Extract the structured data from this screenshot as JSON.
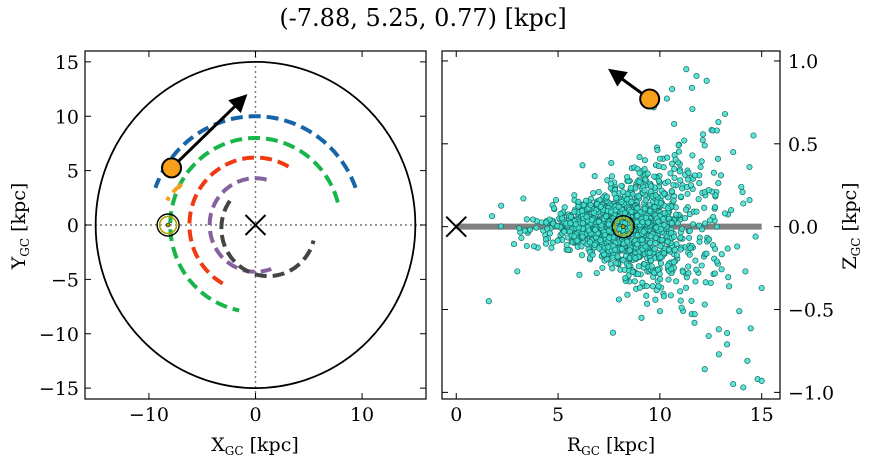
{
  "title": "(-7.88, 5.25, 0.77) [kpc]",
  "colors": {
    "arm_blue": "#1565a8",
    "arm_green": "#17b54a",
    "arm_red": "#f03a12",
    "arm_purple": "#86609f",
    "arm_dark": "#444444",
    "arm_orange": "#f7a01a",
    "sun_ring": "#b3a200",
    "star_marker": "#f7a01a",
    "scatter_fill": "#40e0d0",
    "scatter_edge": "#176b63",
    "disk_plane": "#808080"
  },
  "chart_data": [
    {
      "type": "line",
      "panel": "left",
      "xlabel_base": "X",
      "xlabel_sub": "GC",
      "xlabel_unit": " [kpc]",
      "ylabel_base": "Y",
      "ylabel_sub": "GC",
      "ylabel_unit": " [kpc]",
      "xlim": [
        -16,
        16
      ],
      "ylim": [
        -16,
        16
      ],
      "xticks": [
        -10,
        0,
        10
      ],
      "xtick_labels": [
        "−10",
        "0",
        "10"
      ],
      "yticks": [
        -15,
        -10,
        -5,
        0,
        5,
        10,
        15
      ],
      "ytick_labels": [
        "−15",
        "−10",
        "−5",
        "0",
        "5",
        "10",
        "15"
      ],
      "boundary_radius": 15,
      "galactic_center": [
        0,
        0
      ],
      "sun": [
        -8.2,
        0
      ],
      "object": [
        -7.88,
        5.25
      ],
      "velocity_arrow_tip": [
        -1.0,
        11.8
      ],
      "series": [
        {
          "color": "arm_blue",
          "radius": 10,
          "from_deg": 20,
          "to_deg": 160
        },
        {
          "color": "arm_green",
          "radius": 8,
          "from_deg": 15,
          "to_deg": 260
        },
        {
          "color": "arm_red",
          "radius": 6.2,
          "from_deg": 60,
          "to_deg": 243
        },
        {
          "color": "arm_purple",
          "radius": 4.3,
          "from_deg": 76,
          "to_deg": 290
        },
        {
          "color": "arm_dark",
          "radius": 4.4,
          "from_deg": 145,
          "to_deg": 345,
          "center": [
            1.2,
            -0.3
          ]
        },
        {
          "color": "arm_orange",
          "radius": 4.5,
          "from_deg": 124,
          "to_deg": 150,
          "center": [
            -4.4,
            0
          ]
        }
      ]
    },
    {
      "type": "scatter",
      "panel": "right",
      "xlabel_base": "R",
      "xlabel_sub": "GC",
      "xlabel_unit": " [kpc]",
      "ylabel_base": "Z",
      "ylabel_sub": "GC",
      "ylabel_unit": " [kpc]",
      "xlim": [
        -0.7,
        15.9
      ],
      "ylim": [
        -1.04,
        1.06
      ],
      "xticks": [
        0,
        5,
        10,
        15
      ],
      "xtick_labels": [
        "0",
        "5",
        "10",
        "15"
      ],
      "yticks": [
        -1.0,
        -0.5,
        0.0,
        0.5,
        1.0
      ],
      "ytick_labels": [
        "−1.0",
        "−0.5",
        "0.0",
        "0.5",
        "1.0"
      ],
      "galactic_center": [
        0,
        0
      ],
      "sun": [
        8.2,
        0
      ],
      "object": [
        9.5,
        0.77
      ],
      "velocity_arrow_tip": [
        7.6,
        0.94
      ],
      "disk_line": {
        "x": [
          0,
          15
        ],
        "y": [
          0,
          0
        ]
      },
      "points": [
        [
          1.6,
          -0.45
        ],
        [
          3.0,
          -0.27
        ],
        [
          3.3,
          0.17
        ],
        [
          4.8,
          0.11
        ],
        [
          4.6,
          -0.04
        ],
        [
          5.2,
          0.05
        ],
        [
          5.3,
          -0.03
        ],
        [
          5.6,
          0.02
        ],
        [
          5.8,
          0.09
        ],
        [
          6.0,
          0.15
        ],
        [
          6.2,
          -0.06
        ],
        [
          6.4,
          0.06
        ],
        [
          6.6,
          0.13
        ],
        [
          6.8,
          -0.11
        ],
        [
          7.0,
          0.03
        ],
        [
          7.1,
          0.12
        ],
        [
          7.3,
          -0.05
        ],
        [
          7.4,
          0.18
        ],
        [
          7.6,
          0.09
        ],
        [
          7.8,
          -0.14
        ],
        [
          8.0,
          0.06
        ],
        [
          8.2,
          0.21
        ],
        [
          8.4,
          -0.09
        ],
        [
          8.6,
          0.15
        ],
        [
          8.8,
          -0.19
        ],
        [
          9.0,
          0.27
        ],
        [
          9.2,
          -0.03
        ],
        [
          9.4,
          0.32
        ],
        [
          9.6,
          -0.24
        ],
        [
          9.8,
          0.19
        ],
        [
          10.0,
          0.41
        ],
        [
          10.2,
          -0.16
        ],
        [
          10.4,
          0.11
        ],
        [
          10.6,
          0.38
        ],
        [
          10.8,
          -0.33
        ],
        [
          11.0,
          0.28
        ],
        [
          11.2,
          0.52
        ],
        [
          11.4,
          -0.28
        ],
        [
          11.6,
          0.43
        ],
        [
          11.8,
          0.09
        ],
        [
          12.0,
          0.36
        ],
        [
          12.2,
          -0.47
        ],
        [
          12.4,
          0.22
        ],
        [
          12.6,
          0.58
        ],
        [
          12.8,
          -0.21
        ],
        [
          13.0,
          0.31
        ],
        [
          13.2,
          0.08
        ],
        [
          13.4,
          -0.36
        ],
        [
          13.6,
          0.45
        ],
        [
          13.8,
          -0.12
        ],
        [
          14.0,
          0.24
        ],
        [
          14.2,
          -0.27
        ],
        [
          14.4,
          0.16
        ],
        [
          14.7,
          -0.06
        ],
        [
          15.0,
          -0.37
        ],
        [
          11.3,
          0.95
        ],
        [
          11.8,
          0.91
        ],
        [
          12.3,
          0.88
        ],
        [
          10.6,
          0.83
        ],
        [
          9.7,
          0.72
        ],
        [
          10.7,
          0.62
        ],
        [
          12.8,
          0.58
        ],
        [
          13.2,
          0.68
        ],
        [
          14.1,
          0.14
        ],
        [
          14.6,
          0.55
        ],
        [
          6.2,
          0.37
        ],
        [
          6.9,
          -0.28
        ],
        [
          7.6,
          0.26
        ],
        [
          8.3,
          -0.31
        ],
        [
          9.0,
          0.42
        ],
        [
          10.2,
          -0.42
        ],
        [
          11.7,
          -0.58
        ],
        [
          12.4,
          -0.66
        ],
        [
          12.9,
          -0.77
        ],
        [
          13.3,
          -0.71
        ],
        [
          12.2,
          -0.86
        ],
        [
          13.6,
          -0.95
        ],
        [
          14.1,
          -0.97
        ],
        [
          14.8,
          -0.92
        ],
        [
          15.0,
          -0.93
        ],
        [
          14.3,
          -0.81
        ],
        [
          13.9,
          -0.51
        ],
        [
          10.0,
          -0.51
        ],
        [
          9.1,
          -0.55
        ],
        [
          7.7,
          -0.64
        ],
        [
          11.0,
          -0.39
        ],
        [
          7.0,
          0.21
        ],
        [
          8.6,
          0.09
        ],
        [
          9.3,
          -0.12
        ],
        [
          6.7,
          -0.17
        ],
        [
          5.8,
          0.19
        ],
        [
          5.5,
          -0.14
        ],
        [
          4.9,
          0.16
        ],
        [
          12.8,
          0.0
        ],
        [
          13.5,
          0.1
        ],
        [
          11.5,
          -0.13
        ],
        [
          12.5,
          -0.34
        ],
        [
          14.4,
          0.36
        ],
        [
          11.6,
          0.71
        ],
        [
          12.2,
          0.49
        ]
      ]
    }
  ]
}
